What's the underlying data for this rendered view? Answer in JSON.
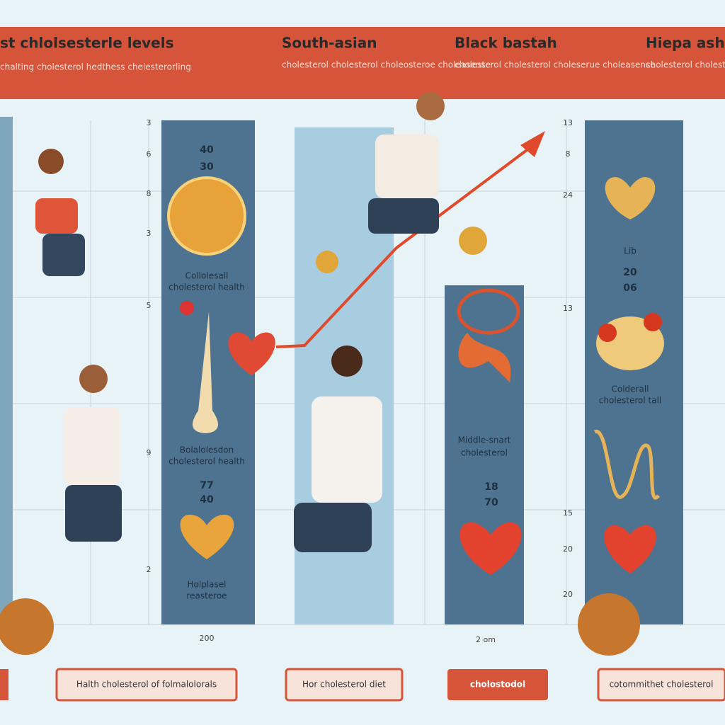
{
  "header": {
    "sections": [
      {
        "title": "st chlolsesterle levels",
        "subtitle": "chalting cholesterol hedthess chelesterorling"
      },
      {
        "title": "South-asian",
        "subtitle": "cholesterol cholesterol choleosteroe choleasense"
      },
      {
        "title": "Black bastah",
        "subtitle": "cholesterol cholesterol choleserue choleasense"
      },
      {
        "title": "Hiepa ashe",
        "subtitle": "cholesterol cholesteroll and chelate cholesteroll"
      }
    ]
  },
  "columns": [
    {
      "labels": [
        "40",
        "30",
        "Collolesall",
        "cholesterol health",
        "Bolalolesdon",
        "cholesterol health",
        "77",
        "40",
        "Holplasel",
        "reasteroe"
      ]
    },
    {
      "labels": [
        "Middle-snart",
        "cholesterol",
        "18",
        "70"
      ]
    },
    {
      "labels": [
        "Lib",
        "20",
        "06",
        "Colderall",
        "cholesterol tall"
      ]
    }
  ],
  "axis_labels": [
    "3",
    "6",
    "8",
    "3",
    "5",
    "9",
    "2",
    "200",
    "13",
    "8",
    "24",
    "13",
    "15",
    "20",
    "20",
    "2 om"
  ],
  "buttons": [
    "Halth cholesterol of folmalolorals",
    "Hor cholesterol diet",
    "cholostodol",
    "cotommithet cholesterol"
  ]
}
